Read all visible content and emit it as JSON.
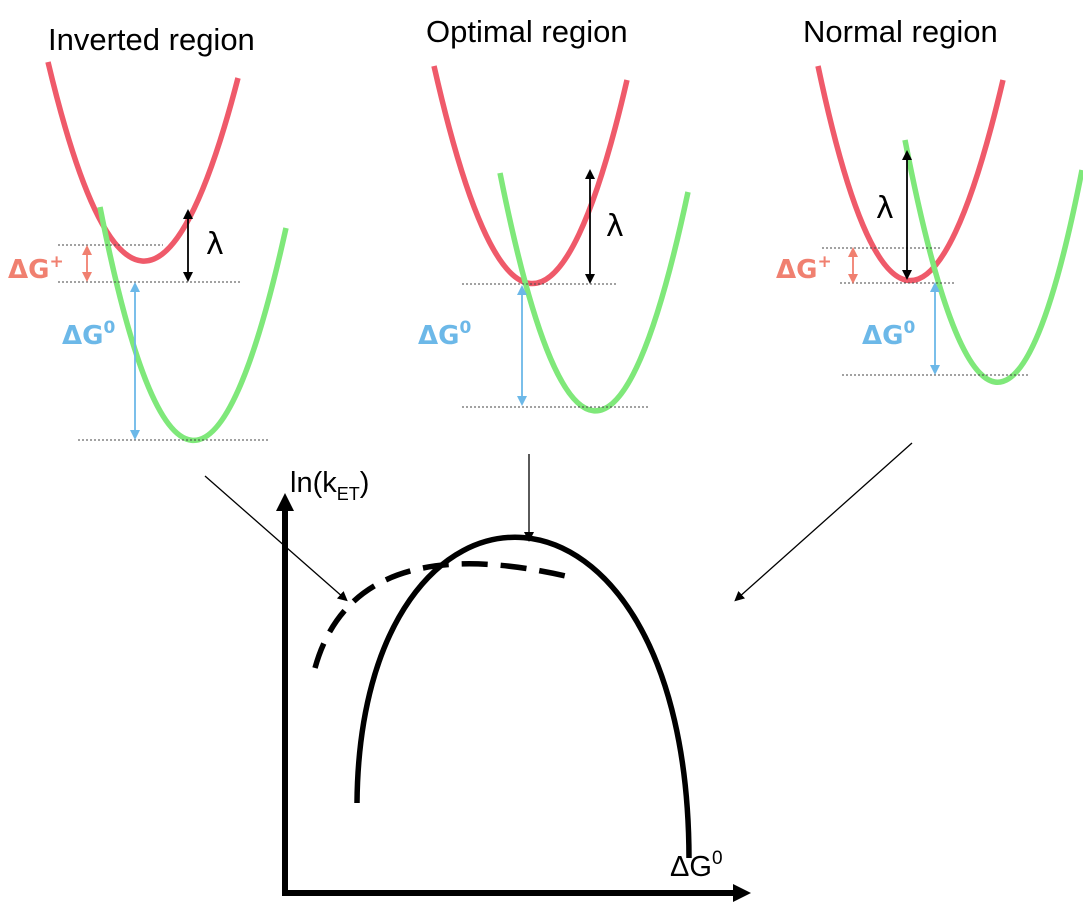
{
  "panels": {
    "inverted": {
      "title": "Inverted region",
      "lambda": "λ",
      "dg_plus": "ΔG",
      "dg_plus_sup": "+",
      "dg0": "ΔG",
      "dg0_sup": "0"
    },
    "optimal": {
      "title": "Optimal region",
      "lambda": "λ",
      "dg0": "ΔG",
      "dg0_sup": "0"
    },
    "normal": {
      "title": "Normal region",
      "lambda": "λ",
      "dg_plus": "ΔG",
      "dg_plus_sup": "+",
      "dg0": "ΔG",
      "dg0_sup": "0"
    }
  },
  "plot": {
    "y_axis": "ln(k",
    "y_axis_sub": "ET",
    "y_axis_end": ")",
    "x_axis": "ΔG",
    "x_axis_sup": "0"
  },
  "colors": {
    "reactant": "#ef5a6a",
    "product": "#7fe87a",
    "delta_g0": "#6cb8e8",
    "delta_g_plus": "#f08070",
    "axis": "#000000"
  }
}
